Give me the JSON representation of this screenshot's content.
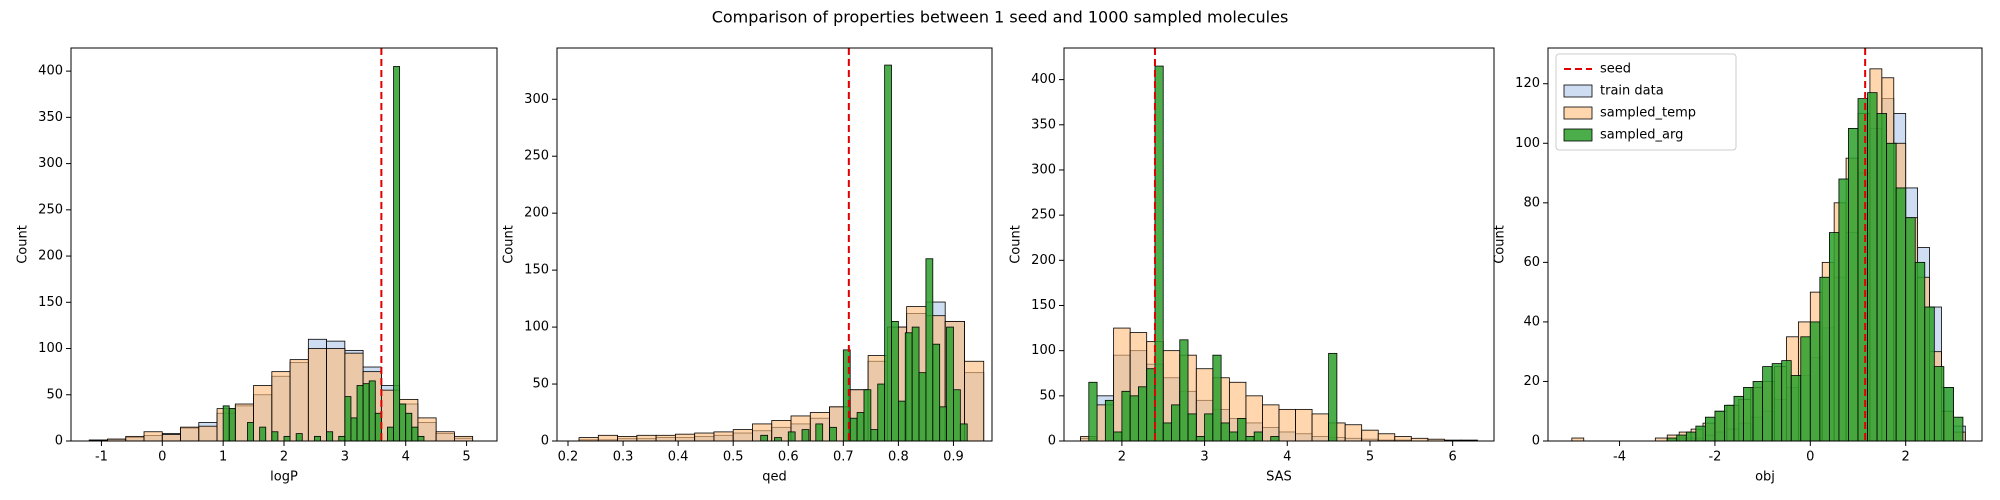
{
  "title": "Comparison of properties between 1 seed and 1000 sampled molecules",
  "chart_data": [
    {
      "type": "histogram",
      "xlabel": "logP",
      "ylabel": "Count",
      "xlim": [
        -1.5,
        5.5
      ],
      "xticks": [
        -1,
        0,
        1,
        2,
        3,
        4,
        5
      ],
      "ylim": [
        0,
        425
      ],
      "yticks": [
        0,
        50,
        100,
        150,
        200,
        250,
        300,
        350,
        400
      ],
      "vline": {
        "value": 3.6,
        "color": "#e00000"
      },
      "series": [
        {
          "color": "#aec7e8",
          "bins": [
            -1.2,
            -0.9,
            -0.6,
            -0.3,
            0,
            0.3,
            0.6,
            0.9,
            1.2,
            1.5,
            1.8,
            2.1,
            2.4,
            2.7,
            3.0,
            3.3,
            3.6,
            3.9,
            4.2,
            4.5,
            4.8,
            5.1
          ],
          "values": [
            1,
            2,
            4,
            6,
            8,
            14,
            20,
            30,
            38,
            50,
            70,
            85,
            110,
            108,
            98,
            80,
            60,
            40,
            20,
            8,
            3
          ]
        },
        {
          "color": "#ffbb78",
          "bins": [
            -1.2,
            -0.9,
            -0.6,
            -0.3,
            0,
            0.3,
            0.6,
            0.9,
            1.2,
            1.5,
            1.8,
            2.1,
            2.4,
            2.7,
            3.0,
            3.3,
            3.6,
            3.9,
            4.2,
            4.5,
            4.8,
            5.1
          ],
          "values": [
            1,
            2,
            5,
            10,
            7,
            15,
            16,
            35,
            40,
            60,
            75,
            88,
            100,
            100,
            95,
            75,
            55,
            45,
            25,
            10,
            5
          ]
        },
        {
          "color": "#2ca02c",
          "bins": [
            1.0,
            1.1,
            1.2,
            1.3,
            1.4,
            1.5,
            1.6,
            1.7,
            1.8,
            1.9,
            2.0,
            2.1,
            2.2,
            2.3,
            2.4,
            2.5,
            2.6,
            2.7,
            2.8,
            2.9,
            3.0,
            3.1,
            3.2,
            3.3,
            3.4,
            3.5,
            3.6,
            3.7,
            3.8,
            3.9,
            4.0,
            4.1,
            4.2,
            4.3
          ],
          "values": [
            38,
            35,
            0,
            0,
            20,
            0,
            15,
            0,
            10,
            0,
            5,
            0,
            8,
            0,
            0,
            5,
            0,
            10,
            0,
            5,
            48,
            25,
            60,
            62,
            65,
            30,
            0,
            15,
            405,
            40,
            30,
            15,
            5
          ]
        }
      ]
    },
    {
      "type": "histogram",
      "xlabel": "qed",
      "ylabel": "Count",
      "xlim": [
        0.18,
        0.97
      ],
      "xticks": [
        0.2,
        0.3,
        0.4,
        0.5,
        0.6,
        0.7,
        0.8,
        0.9
      ],
      "ylim": [
        0,
        345
      ],
      "yticks": [
        0,
        50,
        100,
        150,
        200,
        250,
        300
      ],
      "vline": {
        "value": 0.71,
        "color": "#e00000"
      },
      "series": [
        {
          "color": "#aec7e8",
          "bins": [
            0.22,
            0.255,
            0.29,
            0.325,
            0.36,
            0.395,
            0.43,
            0.465,
            0.5,
            0.535,
            0.57,
            0.605,
            0.64,
            0.675,
            0.71,
            0.745,
            0.78,
            0.815,
            0.85,
            0.885,
            0.92,
            0.955
          ],
          "values": [
            1,
            1,
            2,
            2,
            3,
            3,
            4,
            5,
            7,
            9,
            12,
            15,
            20,
            30,
            45,
            70,
            100,
            112,
            122,
            105,
            60
          ]
        },
        {
          "color": "#ffbb78",
          "bins": [
            0.22,
            0.255,
            0.29,
            0.325,
            0.36,
            0.395,
            0.43,
            0.465,
            0.5,
            0.535,
            0.57,
            0.605,
            0.64,
            0.675,
            0.71,
            0.745,
            0.78,
            0.815,
            0.85,
            0.885,
            0.92,
            0.955
          ],
          "values": [
            3,
            5,
            4,
            5,
            5,
            6,
            7,
            8,
            10,
            15,
            18,
            22,
            25,
            30,
            45,
            75,
            100,
            118,
            110,
            105,
            70
          ]
        },
        {
          "color": "#2ca02c",
          "bins": [
            0.55,
            0.5625,
            0.575,
            0.5875,
            0.6,
            0.6125,
            0.625,
            0.6375,
            0.65,
            0.6625,
            0.675,
            0.6875,
            0.7,
            0.7125,
            0.725,
            0.7375,
            0.75,
            0.7625,
            0.775,
            0.7875,
            0.8,
            0.8125,
            0.825,
            0.8375,
            0.85,
            0.8625,
            0.875,
            0.8875,
            0.9,
            0.9125,
            0.925
          ],
          "values": [
            5,
            0,
            3,
            0,
            8,
            0,
            10,
            0,
            15,
            0,
            12,
            0,
            80,
            20,
            25,
            45,
            10,
            50,
            330,
            105,
            35,
            95,
            100,
            60,
            160,
            85,
            30,
            100,
            45,
            15
          ]
        }
      ]
    },
    {
      "type": "histogram",
      "xlabel": "SAS",
      "ylabel": "Count",
      "xlim": [
        1.3,
        6.5
      ],
      "xticks": [
        2,
        3,
        4,
        5,
        6
      ],
      "ylim": [
        0,
        435
      ],
      "yticks": [
        0,
        50,
        100,
        150,
        200,
        250,
        300,
        350,
        400
      ],
      "vline": {
        "value": 2.4,
        "color": "#e00000"
      },
      "series": [
        {
          "color": "#aec7e8",
          "bins": [
            1.5,
            1.7,
            1.9,
            2.1,
            2.3,
            2.5,
            2.7,
            2.9,
            3.1,
            3.3,
            3.5,
            3.7,
            3.9,
            4.1,
            4.3,
            4.5,
            4.7,
            4.9,
            5.1,
            5.3,
            5.5,
            5.7,
            5.9,
            6.1,
            6.3
          ],
          "values": [
            3,
            50,
            95,
            100,
            85,
            70,
            55,
            45,
            35,
            25,
            20,
            15,
            10,
            8,
            5,
            4,
            3,
            2,
            1,
            1,
            0,
            0,
            0,
            0
          ]
        },
        {
          "color": "#ffbb78",
          "bins": [
            1.5,
            1.7,
            1.9,
            2.1,
            2.3,
            2.5,
            2.7,
            2.9,
            3.1,
            3.3,
            3.5,
            3.7,
            3.9,
            4.1,
            4.3,
            4.5,
            4.7,
            4.9,
            5.1,
            5.3,
            5.5,
            5.7,
            5.9,
            6.1,
            6.3
          ],
          "values": [
            5,
            40,
            125,
            120,
            110,
            100,
            95,
            80,
            70,
            65,
            50,
            40,
            35,
            35,
            30,
            20,
            18,
            12,
            8,
            5,
            3,
            2,
            1,
            1
          ]
        },
        {
          "color": "#2ca02c",
          "bins": [
            1.6,
            1.7,
            1.8,
            1.9,
            2.0,
            2.1,
            2.2,
            2.3,
            2.4,
            2.5,
            2.6,
            2.7,
            2.8,
            2.9,
            3.0,
            3.1,
            3.2,
            3.3,
            3.4,
            3.5,
            3.6,
            3.7,
            3.8,
            3.9,
            4.0,
            4.1,
            4.2,
            4.3,
            4.4,
            4.5,
            4.6
          ],
          "values": [
            65,
            0,
            45,
            10,
            55,
            50,
            60,
            80,
            415,
            20,
            40,
            112,
            30,
            5,
            30,
            95,
            20,
            10,
            25,
            5,
            10,
            0,
            5,
            0,
            0,
            0,
            0,
            0,
            0,
            97
          ]
        }
      ]
    },
    {
      "type": "histogram",
      "xlabel": "obj",
      "ylabel": "Count",
      "xlim": [
        -5.5,
        3.6
      ],
      "xticks": [
        -4,
        -2,
        0,
        2
      ],
      "ylim": [
        0,
        132
      ],
      "yticks": [
        0,
        20,
        40,
        60,
        80,
        100,
        120
      ],
      "legend": "upper left",
      "vline": {
        "name": "seed",
        "value": 1.15,
        "color": "#e00000"
      },
      "series": [
        {
          "name": "train data",
          "color": "#aec7e8",
          "bins": [
            -5.0,
            -4.75,
            -4.5,
            -4.25,
            -4.0,
            -3.75,
            -3.5,
            -3.25,
            -3.0,
            -2.75,
            -2.5,
            -2.25,
            -2.0,
            -1.75,
            -1.5,
            -1.25,
            -1.0,
            -0.75,
            -0.5,
            -0.25,
            0,
            0.25,
            0.5,
            0.75,
            1.0,
            1.25,
            1.5,
            1.75,
            2.0,
            2.25,
            2.5,
            2.75,
            3.0,
            3.25
          ],
          "values": [
            0,
            0,
            0,
            0,
            0,
            0,
            0,
            0,
            0,
            1,
            1,
            2,
            3,
            4,
            6,
            8,
            10,
            14,
            18,
            22,
            28,
            38,
            55,
            70,
            90,
            105,
            115,
            110,
            85,
            65,
            45,
            18,
            5
          ]
        },
        {
          "name": "sampled_temp",
          "color": "#ffbb78",
          "bins": [
            -5.0,
            -4.75,
            -4.5,
            -4.25,
            -4.0,
            -3.75,
            -3.5,
            -3.25,
            -3.0,
            -2.75,
            -2.5,
            -2.25,
            -2.0,
            -1.75,
            -1.5,
            -1.25,
            -1.0,
            -0.75,
            -0.5,
            -0.25,
            0,
            0.25,
            0.5,
            0.75,
            1.0,
            1.25,
            1.5,
            1.75,
            2.0,
            2.25,
            2.5,
            2.75,
            3.0,
            3.25
          ],
          "values": [
            1,
            0,
            0,
            0,
            0,
            0,
            0,
            1,
            2,
            3,
            4,
            6,
            10,
            12,
            14,
            18,
            20,
            25,
            35,
            40,
            50,
            60,
            80,
            95,
            110,
            125,
            122,
            100,
            75,
            55,
            30,
            10,
            3
          ]
        },
        {
          "name": "sampled_arg",
          "color": "#2ca02c",
          "bins": [
            -3.0,
            -2.8,
            -2.6,
            -2.4,
            -2.2,
            -2.0,
            -1.8,
            -1.6,
            -1.4,
            -1.2,
            -1.0,
            -0.8,
            -0.6,
            -0.4,
            -0.2,
            0,
            0.2,
            0.4,
            0.6,
            0.8,
            1.0,
            1.2,
            1.4,
            1.6,
            1.8,
            2.0,
            2.2,
            2.4,
            2.6,
            2.8,
            3.0,
            3.2
          ],
          "values": [
            1,
            2,
            3,
            5,
            8,
            10,
            12,
            15,
            18,
            20,
            25,
            26,
            27,
            22,
            35,
            40,
            55,
            70,
            88,
            105,
            115,
            117,
            110,
            100,
            85,
            75,
            60,
            45,
            25,
            18,
            8
          ]
        }
      ]
    }
  ]
}
